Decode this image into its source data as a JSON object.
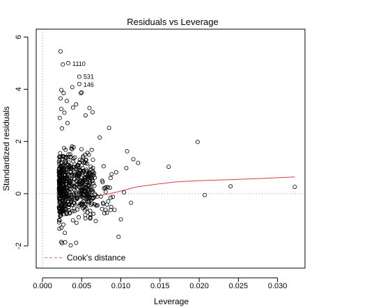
{
  "chart_data": {
    "type": "scatter",
    "title": "Residuals vs Leverage",
    "xlabel": "Leverage",
    "ylabel": "Standardized residuals",
    "xlim": [
      -0.0008,
      0.0335
    ],
    "ylim": [
      -2.85,
      6.3
    ],
    "x_ticks": [
      0.0,
      0.005,
      0.01,
      0.015,
      0.02,
      0.025,
      0.03
    ],
    "x_tick_labels": [
      "0.000",
      "0.005",
      "0.010",
      "0.015",
      "0.020",
      "0.025",
      "0.030"
    ],
    "y_ticks": [
      -2,
      0,
      2,
      4,
      6
    ],
    "y_tick_labels": [
      "-2",
      "0",
      "2",
      "4",
      "6"
    ],
    "grid": false,
    "reference_lines": {
      "h": 0,
      "v": 0
    },
    "legend": {
      "position": "bottom-left",
      "label": "Cook's distance",
      "style": "dashed",
      "color": "#d06b6b"
    },
    "annotations": [
      {
        "label": "1110",
        "x": 0.0033,
        "y": 5.0
      },
      {
        "label": "531",
        "x": 0.0047,
        "y": 4.5
      },
      {
        "label": "146",
        "x": 0.0047,
        "y": 4.2
      }
    ],
    "smoother": {
      "color": "#d04040",
      "points": [
        [
          0.002,
          -0.22
        ],
        [
          0.0035,
          -0.18
        ],
        [
          0.005,
          -0.13
        ],
        [
          0.0065,
          -0.09
        ],
        [
          0.008,
          -0.04
        ],
        [
          0.01,
          0.1
        ],
        [
          0.012,
          0.26
        ],
        [
          0.0145,
          0.36
        ],
        [
          0.017,
          0.45
        ],
        [
          0.02,
          0.5
        ],
        [
          0.025,
          0.55
        ],
        [
          0.03,
          0.61
        ],
        [
          0.0322,
          0.64
        ]
      ]
    },
    "series": [
      {
        "points": [
          [
            0.0023,
            5.45
          ],
          [
            0.0033,
            5.0
          ],
          [
            0.0026,
            4.95
          ],
          [
            0.0047,
            4.48
          ],
          [
            0.0047,
            4.2
          ],
          [
            0.0038,
            4.08
          ],
          [
            0.005,
            3.88
          ],
          [
            0.0049,
            3.85
          ],
          [
            0.0024,
            3.97
          ],
          [
            0.0027,
            3.85
          ],
          [
            0.0023,
            3.65
          ],
          [
            0.0031,
            3.55
          ],
          [
            0.0039,
            3.3
          ],
          [
            0.0043,
            3.42
          ],
          [
            0.006,
            3.28
          ],
          [
            0.0064,
            3.12
          ],
          [
            0.0055,
            3.0
          ],
          [
            0.0024,
            3.25
          ],
          [
            0.0028,
            3.1
          ],
          [
            0.0022,
            2.9
          ],
          [
            0.0032,
            2.7
          ],
          [
            0.0025,
            2.5
          ],
          [
            0.0085,
            2.52
          ],
          [
            0.0073,
            2.15
          ],
          [
            0.0108,
            1.62
          ],
          [
            0.0198,
            1.98
          ],
          [
            0.0161,
            1.03
          ],
          [
            0.0116,
            1.32
          ],
          [
            0.0122,
            1.18
          ],
          [
            0.0107,
            0.98
          ],
          [
            0.0094,
            0.82
          ],
          [
            0.0087,
            0.6
          ],
          [
            0.0078,
            1.05
          ],
          [
            0.0104,
            0.05
          ],
          [
            0.0207,
            -0.05
          ],
          [
            0.024,
            0.28
          ],
          [
            0.0322,
            0.26
          ],
          [
            0.0113,
            -0.35
          ],
          [
            0.0092,
            -0.62
          ],
          [
            0.01,
            -0.98
          ],
          [
            0.0097,
            -1.65
          ],
          [
            0.0087,
            -0.15
          ],
          [
            0.0079,
            -0.75
          ],
          [
            0.0068,
            -1.05
          ],
          [
            0.0061,
            -0.9
          ],
          [
            0.0043,
            -1.88
          ],
          [
            0.0036,
            -1.98
          ],
          [
            0.0029,
            -1.86
          ],
          [
            0.0024,
            -1.85
          ],
          [
            0.0025,
            -1.9
          ]
        ],
        "cloud": {
          "count": 470,
          "seed": 7,
          "x_range": [
            0.0021,
            0.0065
          ],
          "y_range": [
            -1.45,
            2.35
          ],
          "extra": [
            {
              "count": 60,
              "x_range": [
                0.0021,
                0.0035
              ],
              "y_range": [
                -1.8,
                1.2
              ]
            },
            {
              "count": 40,
              "x_range": [
                0.005,
                0.0075
              ],
              "y_range": [
                -1.2,
                1.5
              ]
            },
            {
              "count": 25,
              "x_range": [
                0.0065,
                0.0095
              ],
              "y_range": [
                -1.1,
                0.9
              ]
            }
          ]
        }
      }
    ]
  }
}
